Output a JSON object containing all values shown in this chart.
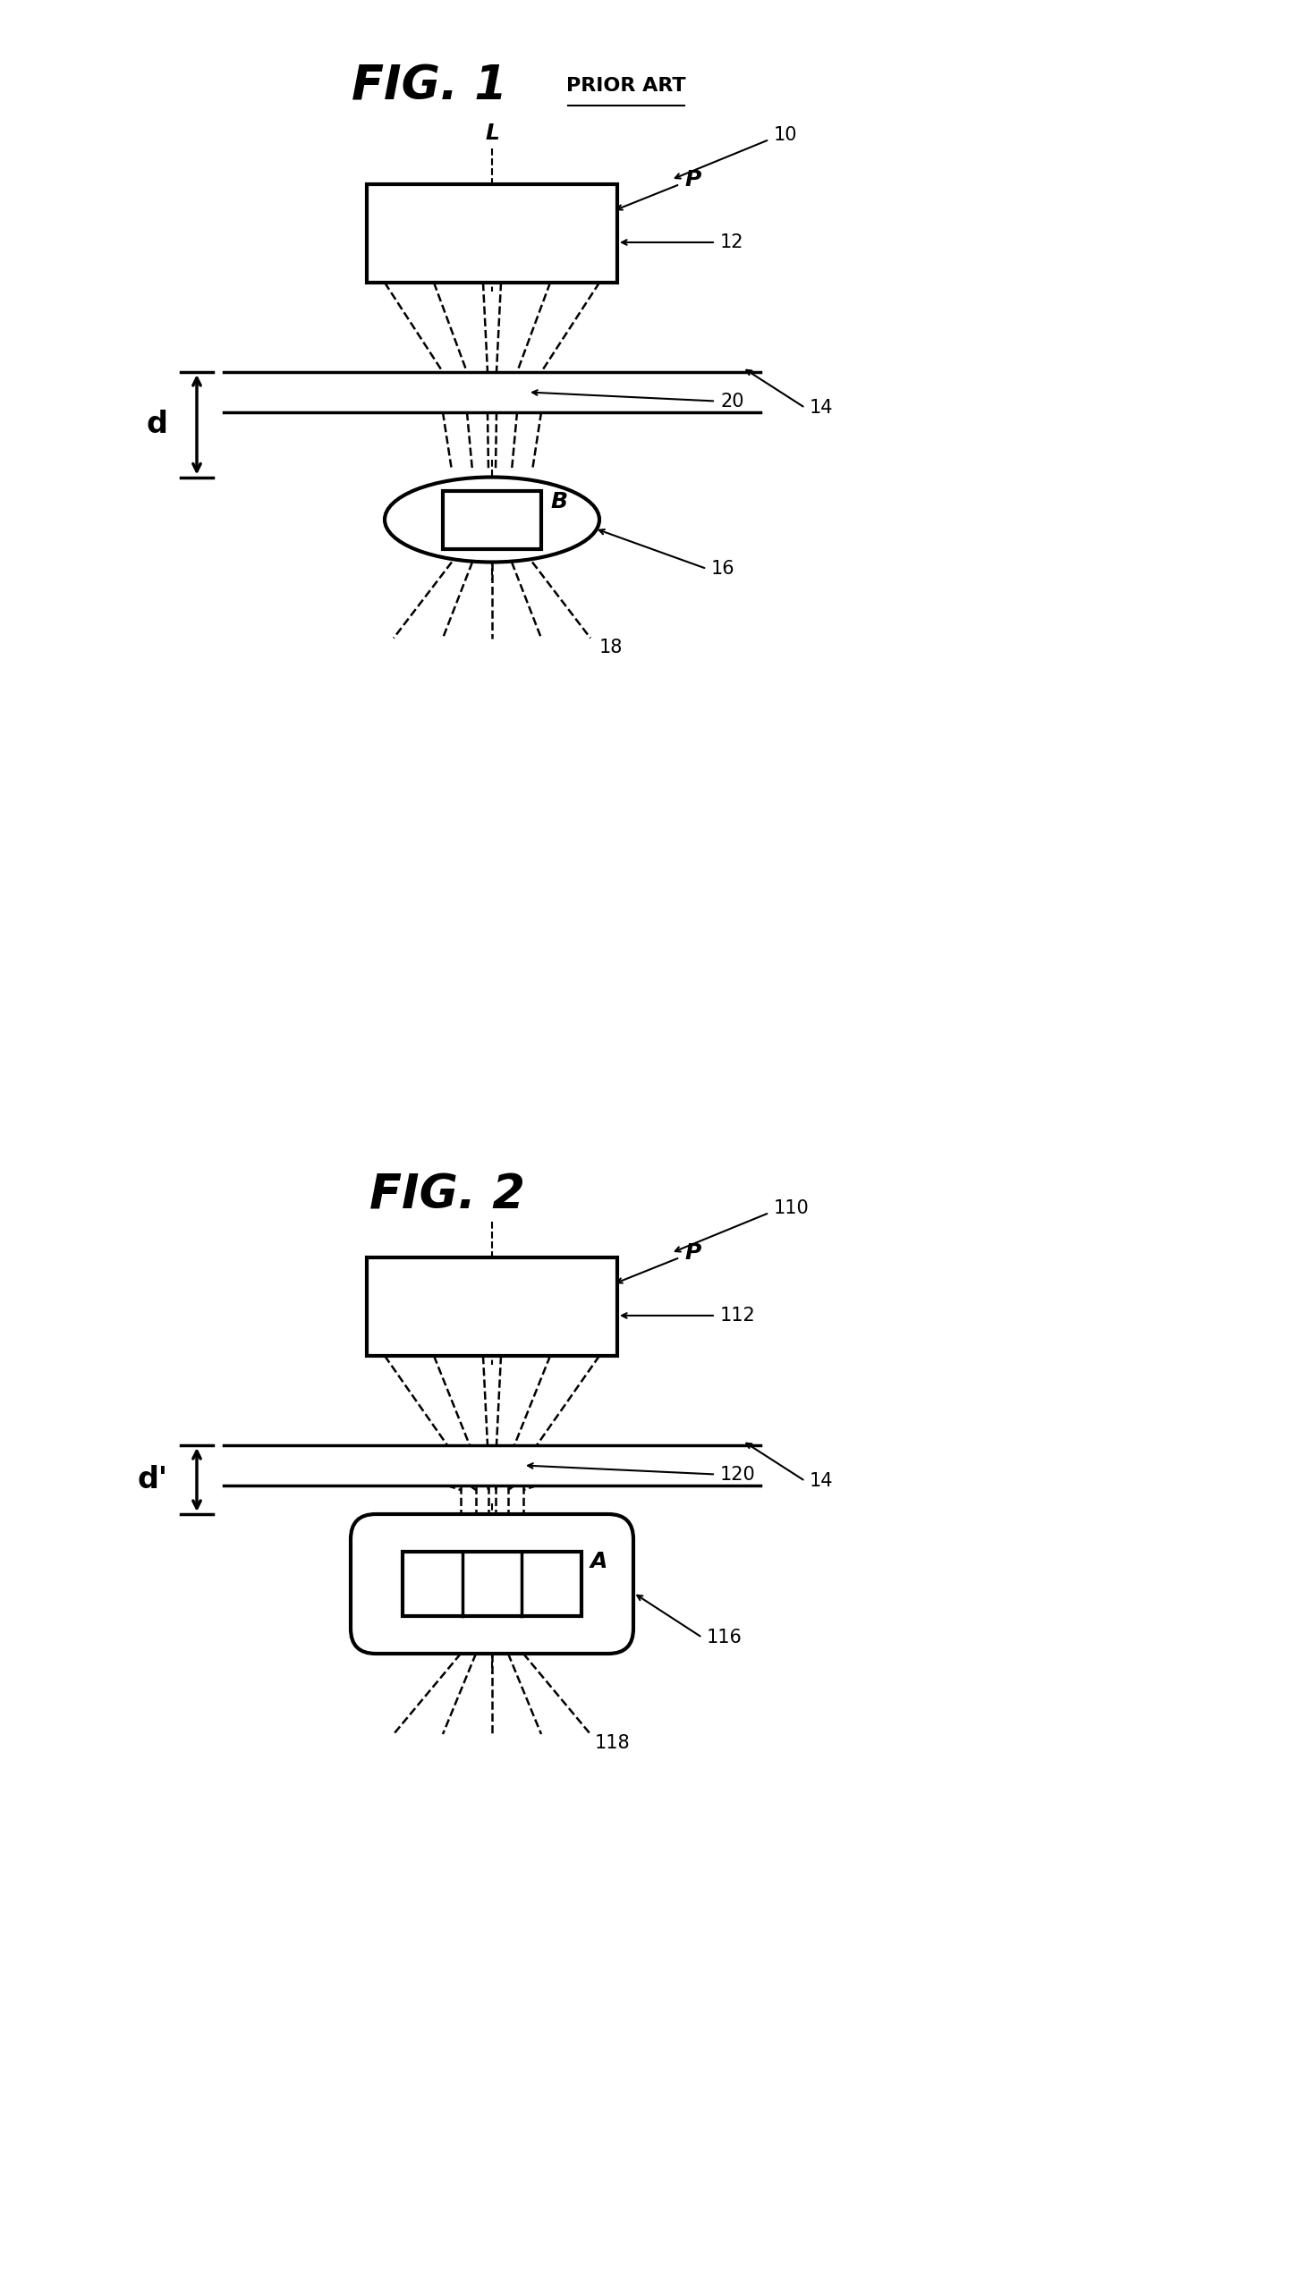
{
  "fig1_title": "FIG. 1",
  "fig1_subtitle": "PRIOR ART",
  "fig2_title": "FIG. 2",
  "bg_color": "#ffffff",
  "line_color": "#000000",
  "fig_title_fontsize": 38,
  "subtitle_fontsize": 16,
  "label_fontsize": 18,
  "ref_fontsize": 15
}
